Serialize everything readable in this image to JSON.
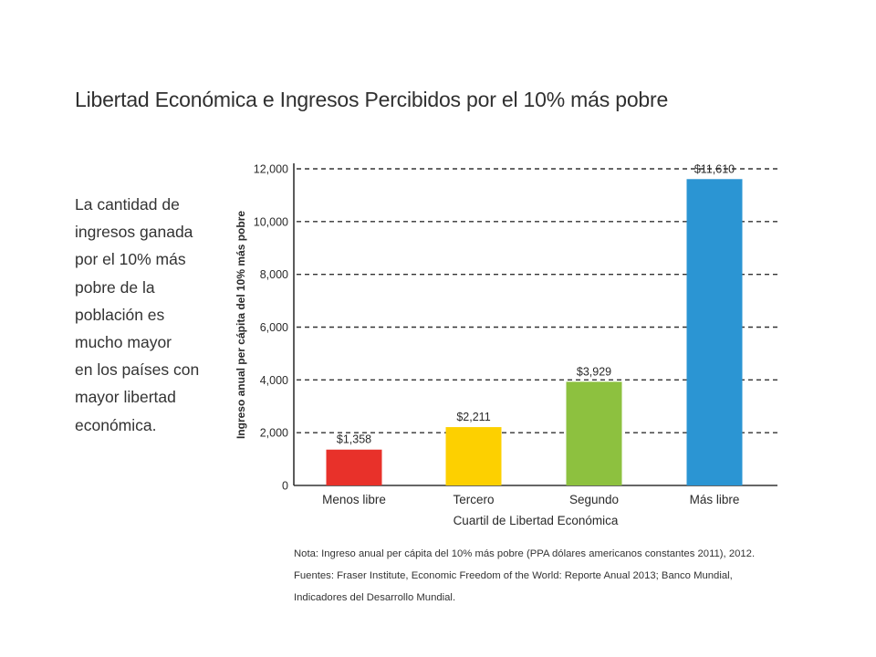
{
  "page": {
    "title": "Libertad Económica e Ingresos Percibidos por el 10% más pobre",
    "side_text_lines": [
      "La cantidad de",
      "ingresos ganada",
      "por el 10% más",
      "pobre de la",
      "población es",
      "mucho mayor",
      "en los países con",
      "mayor libertad",
      "económica."
    ],
    "note_lines": [
      "Nota: Ingreso anual per cápita del 10% más pobre (PPA dólares americanos constantes 2011), 2012.",
      "Fuentes: Fraser Institute, Economic Freedom of the World: Reporte Anual 2013; Banco Mundial,",
      "Indicadores del Desarrollo Mundial."
    ]
  },
  "chart_data": {
    "type": "bar",
    "title": "Libertad Económica e Ingresos Percibidos por el 10% más pobre",
    "xlabel": "Cuartil de Libertad Económica",
    "ylabel": "Ingreso anual  per cápita del  10% más pobre",
    "categories": [
      "Menos libre",
      "Tercero",
      "Segundo",
      "Más libre"
    ],
    "values": [
      1358,
      2211,
      3929,
      11610
    ],
    "data_labels": [
      "$1,358",
      "$2,211",
      "$3,929",
      "$11,610"
    ],
    "colors": [
      "#e8312a",
      "#fdd000",
      "#8dc13f",
      "#2b95d3"
    ],
    "ylim": [
      0,
      12000
    ],
    "yticks": [
      0,
      2000,
      4000,
      6000,
      8000,
      10000,
      12000
    ],
    "ytick_labels": [
      "0",
      "2,000",
      "4,000",
      "6,000",
      "8,000",
      "10,000",
      "12,000"
    ],
    "grid": true,
    "grid_style": "dashed",
    "legend": "none"
  }
}
